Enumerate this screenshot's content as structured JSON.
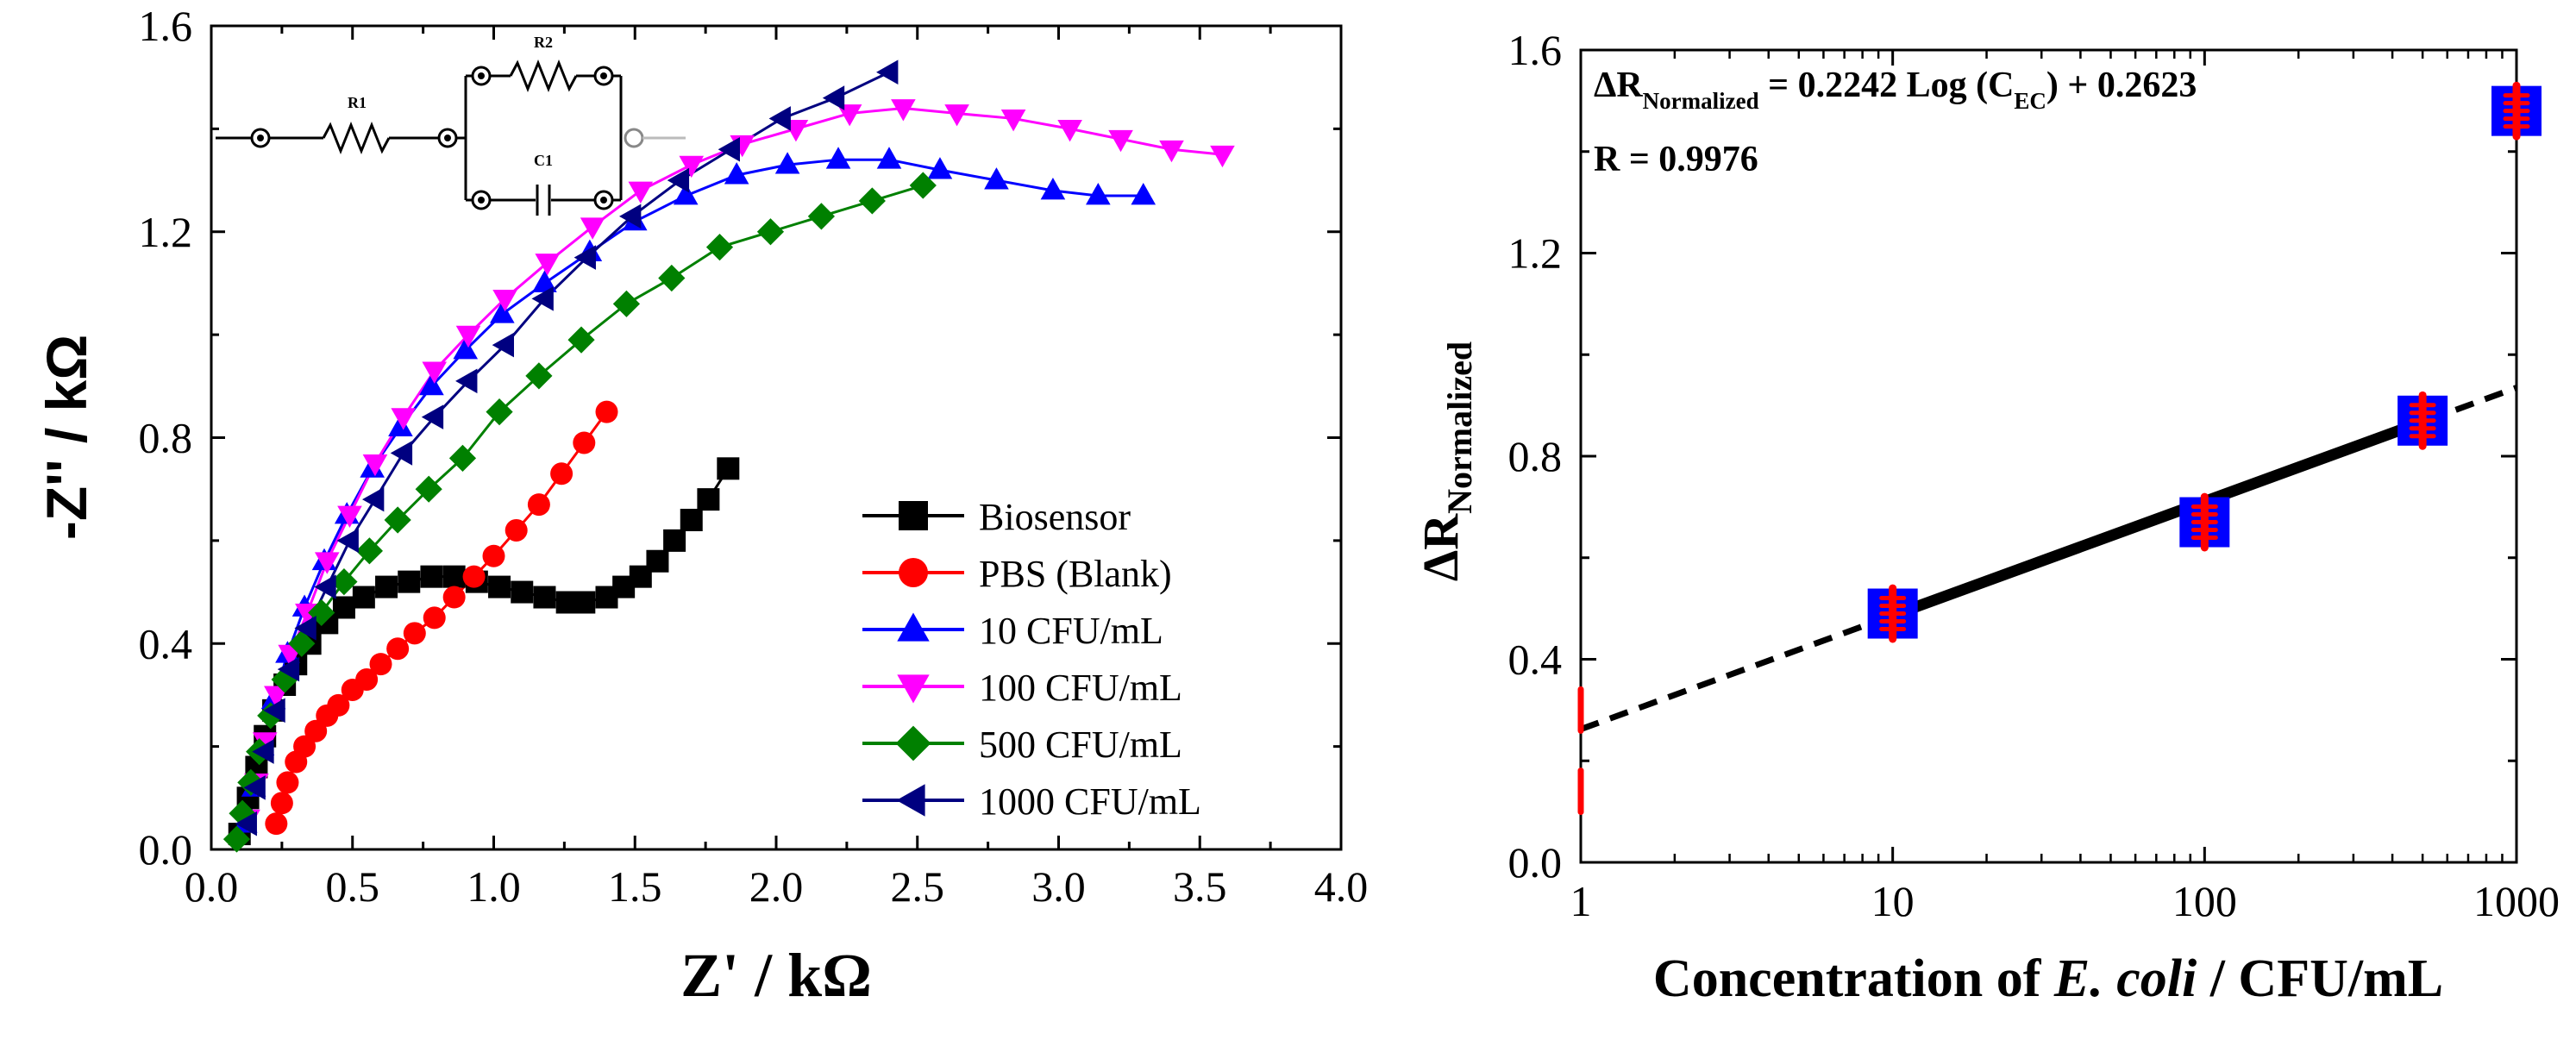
{
  "chart_data": [
    {
      "type": "scatter",
      "title": "",
      "xlabel": "Z' / kΩ",
      "ylabel": "-Z'' / kΩ",
      "xlim": [
        0.0,
        4.0
      ],
      "ylim": [
        0.0,
        1.6
      ],
      "xticks": [
        "0.0",
        "0.5",
        "1.0",
        "1.5",
        "2.0",
        "2.5",
        "3.0",
        "3.5",
        "4.0"
      ],
      "yticks": [
        "0.0",
        "0.4",
        "0.8",
        "1.2",
        "1.6"
      ],
      "legend_position": "bottom-right",
      "circuit": {
        "r1": "R1",
        "r2": "R2",
        "c1": "C1"
      },
      "series": [
        {
          "name": "Biosensor",
          "color": "#000000",
          "marker": "square",
          "x": [
            0.1,
            0.13,
            0.16,
            0.19,
            0.22,
            0.26,
            0.3,
            0.35,
            0.41,
            0.47,
            0.54,
            0.62,
            0.7,
            0.78,
            0.86,
            0.94,
            1.02,
            1.1,
            1.18,
            1.26,
            1.32,
            1.4,
            1.46,
            1.52,
            1.58,
            1.64,
            1.7,
            1.76,
            1.83
          ],
          "y": [
            0.03,
            0.1,
            0.16,
            0.22,
            0.27,
            0.32,
            0.36,
            0.4,
            0.44,
            0.47,
            0.49,
            0.51,
            0.52,
            0.53,
            0.53,
            0.52,
            0.51,
            0.5,
            0.49,
            0.48,
            0.48,
            0.49,
            0.51,
            0.53,
            0.56,
            0.6,
            0.64,
            0.68,
            0.74
          ]
        },
        {
          "name": "PBS (Blank)",
          "color": "#ff0000",
          "marker": "circle",
          "x": [
            0.23,
            0.25,
            0.27,
            0.3,
            0.33,
            0.37,
            0.41,
            0.45,
            0.5,
            0.55,
            0.6,
            0.66,
            0.72,
            0.79,
            0.86,
            0.93,
            1.0,
            1.08,
            1.16,
            1.24,
            1.32,
            1.4
          ],
          "y": [
            0.05,
            0.09,
            0.13,
            0.17,
            0.2,
            0.23,
            0.26,
            0.28,
            0.31,
            0.33,
            0.36,
            0.39,
            0.42,
            0.45,
            0.49,
            0.53,
            0.57,
            0.62,
            0.67,
            0.73,
            0.79,
            0.85
          ]
        },
        {
          "name": "10 CFU/mL",
          "color": "#0000ff",
          "marker": "triangle-up",
          "x": [
            0.12,
            0.15,
            0.18,
            0.22,
            0.27,
            0.33,
            0.4,
            0.48,
            0.57,
            0.67,
            0.78,
            0.9,
            1.03,
            1.18,
            1.34,
            1.5,
            1.68,
            1.86,
            2.04,
            2.22,
            2.4,
            2.58,
            2.78,
            2.98,
            3.14,
            3.3
          ],
          "y": [
            0.05,
            0.12,
            0.2,
            0.29,
            0.38,
            0.47,
            0.56,
            0.65,
            0.74,
            0.82,
            0.9,
            0.97,
            1.04,
            1.1,
            1.16,
            1.22,
            1.27,
            1.31,
            1.33,
            1.34,
            1.34,
            1.32,
            1.3,
            1.28,
            1.27,
            1.27
          ]
        },
        {
          "name": "100 CFU/mL",
          "color": "#ff00ff",
          "marker": "triangle-down",
          "x": [
            0.13,
            0.16,
            0.19,
            0.23,
            0.28,
            0.34,
            0.41,
            0.49,
            0.58,
            0.68,
            0.79,
            0.91,
            1.04,
            1.19,
            1.35,
            1.52,
            1.7,
            1.88,
            2.07,
            2.26,
            2.45,
            2.64,
            2.84,
            3.04,
            3.22,
            3.4,
            3.58
          ],
          "y": [
            0.06,
            0.13,
            0.21,
            0.3,
            0.38,
            0.46,
            0.56,
            0.65,
            0.75,
            0.84,
            0.93,
            1.0,
            1.07,
            1.14,
            1.21,
            1.28,
            1.33,
            1.37,
            1.4,
            1.43,
            1.44,
            1.43,
            1.42,
            1.4,
            1.38,
            1.36,
            1.35
          ]
        },
        {
          "name": "500 CFU/mL",
          "color": "#008000",
          "marker": "diamond",
          "x": [
            0.09,
            0.11,
            0.14,
            0.17,
            0.21,
            0.26,
            0.32,
            0.39,
            0.47,
            0.56,
            0.66,
            0.77,
            0.89,
            1.02,
            1.16,
            1.31,
            1.47,
            1.63,
            1.8,
            1.98,
            2.16,
            2.34,
            2.52
          ],
          "y": [
            0.02,
            0.07,
            0.13,
            0.19,
            0.26,
            0.33,
            0.4,
            0.46,
            0.52,
            0.58,
            0.64,
            0.7,
            0.76,
            0.85,
            0.92,
            0.99,
            1.06,
            1.11,
            1.17,
            1.2,
            1.23,
            1.26,
            1.29
          ]
        },
        {
          "name": "1000 CFU/mL",
          "color": "#000080",
          "marker": "triangle-left",
          "x": [
            0.13,
            0.16,
            0.19,
            0.23,
            0.28,
            0.34,
            0.41,
            0.49,
            0.58,
            0.68,
            0.79,
            0.91,
            1.04,
            1.18,
            1.33,
            1.49,
            1.66,
            1.84,
            2.02,
            2.21,
            2.4
          ],
          "y": [
            0.05,
            0.12,
            0.19,
            0.27,
            0.35,
            0.43,
            0.51,
            0.6,
            0.68,
            0.77,
            0.84,
            0.91,
            0.98,
            1.07,
            1.15,
            1.23,
            1.3,
            1.36,
            1.42,
            1.46,
            1.51
          ]
        }
      ]
    },
    {
      "type": "scatter",
      "title": "",
      "xlabel_parts": [
        "Concentration of ",
        "E. coli",
        " / CFU/mL"
      ],
      "ylabel_main": "ΔR",
      "ylabel_sub": "Normalized",
      "xscale": "log",
      "xlim": [
        1,
        1000
      ],
      "ylim": [
        0.0,
        1.6
      ],
      "xticks": [
        "1",
        "10",
        "100",
        "1000"
      ],
      "yticks": [
        "0.0",
        "0.4",
        "0.8",
        "1.2",
        "1.6"
      ],
      "equation": {
        "lhs": "ΔR",
        "lhs_sub": "Normalized",
        "mid": " = 0.2242 Log (C",
        "sub2": "EC",
        "rhs": ") + 0.2623"
      },
      "r_value": "R = 0.9976",
      "points": [
        {
          "x": 10,
          "y": 0.49,
          "err": 0.05
        },
        {
          "x": 100,
          "y": 0.67,
          "err": 0.05
        },
        {
          "x": 500,
          "y": 0.87,
          "err": 0.05
        },
        {
          "x": 1000,
          "y": 1.48,
          "err": 0.05
        }
      ],
      "fit": {
        "slope": 0.2242,
        "intercept": 0.2623,
        "solid_from": 10,
        "solid_to": 500,
        "dashed_from": 1,
        "dashed_to": 1000
      },
      "edge_marks": [
        {
          "x": 1,
          "y": 0.3
        },
        {
          "x": 1,
          "y": 0.14
        }
      ]
    }
  ]
}
